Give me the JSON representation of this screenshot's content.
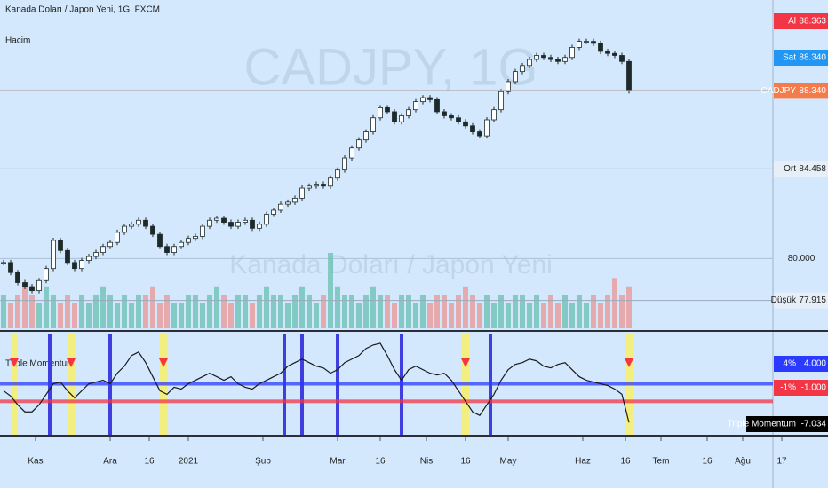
{
  "header": {
    "symbol_title": "Kanada Doları / Japon Yeni, 1G, FXCM",
    "volume_label": "Hacim",
    "watermark": "CADJPY, 1G",
    "watermark_sub": "Kanada Doları / Japon Yeni"
  },
  "chart_data": [
    {
      "type": "candlestick",
      "up_color": "#ffffff",
      "down_color": "#1e2a2a",
      "x": [
        1,
        3,
        5,
        7,
        9,
        11,
        13,
        15,
        17,
        19,
        21,
        23,
        25,
        27,
        29,
        31,
        33,
        35,
        37,
        39,
        41,
        43,
        45,
        47,
        49,
        51,
        53,
        55,
        57,
        59,
        61,
        63,
        65,
        67,
        69,
        71,
        73,
        75,
        77,
        79,
        81,
        83,
        85,
        87,
        89,
        91,
        93,
        95,
        97,
        99,
        101,
        103,
        105,
        107,
        109,
        111,
        113,
        115,
        117,
        119,
        121,
        123,
        125,
        127,
        129,
        131,
        133,
        135,
        137,
        139,
        141,
        143,
        145,
        147,
        149,
        151,
        153,
        155,
        157,
        159,
        161,
        163,
        165,
        167,
        169,
        171,
        173,
        175,
        177
      ],
      "close": [
        79.8,
        79.3,
        78.8,
        78.6,
        78.4,
        78.9,
        79.5,
        80.9,
        80.4,
        79.8,
        79.5,
        79.9,
        80.1,
        80.3,
        80.6,
        80.8,
        81.3,
        81.6,
        81.7,
        81.9,
        81.6,
        81.2,
        80.6,
        80.3,
        80.6,
        80.8,
        81.0,
        81.1,
        81.6,
        81.9,
        82.0,
        81.8,
        81.6,
        81.8,
        81.9,
        81.5,
        81.7,
        82.2,
        82.4,
        82.7,
        82.8,
        83.0,
        83.5,
        83.6,
        83.7,
        83.6,
        84.0,
        84.4,
        85.0,
        85.5,
        85.9,
        86.3,
        87.0,
        87.5,
        87.3,
        86.8,
        87.1,
        87.4,
        87.8,
        88.0,
        87.9,
        87.3,
        87.1,
        87.0,
        86.8,
        86.6,
        86.3,
        86.1,
        86.9,
        87.4,
        88.3,
        88.8,
        89.3,
        89.6,
        89.9,
        90.1,
        90.0,
        89.9,
        89.8,
        90.0,
        90.5,
        90.8,
        90.8,
        90.7,
        90.3,
        90.2,
        90.1,
        89.8,
        88.34
      ],
      "volume": [
        4,
        3,
        4,
        5,
        4,
        3,
        5,
        4,
        3,
        4,
        3,
        4,
        3,
        4,
        5,
        4,
        3,
        4,
        3,
        4,
        4,
        5,
        3,
        4,
        3,
        3,
        4,
        4,
        3,
        4,
        5,
        4,
        3,
        4,
        4,
        3,
        4,
        5,
        4,
        4,
        3,
        4,
        5,
        4,
        3,
        4,
        9,
        5,
        4,
        4,
        3,
        4,
        5,
        4,
        4,
        3,
        4,
        4,
        3,
        4,
        3,
        4,
        4,
        3,
        4,
        5,
        4,
        3,
        4,
        3,
        4,
        3,
        4,
        4,
        3,
        4,
        3,
        4,
        3,
        4,
        3,
        4,
        3,
        4,
        3,
        4,
        6,
        4,
        5
      ],
      "xlim": [
        0,
        218
      ],
      "ylim": [
        76.44,
        92.77
      ],
      "yticks": [
        {
          "value": 80,
          "label": "80.000"
        }
      ],
      "price_labels": [
        {
          "name": "Al",
          "value": 88.363,
          "label": "88.363",
          "color": "#f23645"
        },
        {
          "name": "Sat",
          "value": 88.34,
          "label": "88.340",
          "color": "#2196f3"
        },
        {
          "name": "CADJPY",
          "value": 88.34,
          "label": "88.340",
          "color": "#f57c4a"
        },
        {
          "name": "Ort",
          "value": 84.458,
          "label": "84.458",
          "color": "#e6eef7"
        },
        {
          "name": "Düşük",
          "value": 77.915,
          "label": "77.915",
          "color": "#e6eef7"
        }
      ]
    },
    {
      "type": "line",
      "title": "Triple Momentum",
      "color": "#1a1a1a",
      "x": [
        1,
        3,
        5,
        7,
        9,
        11,
        13,
        15,
        17,
        19,
        21,
        23,
        25,
        27,
        29,
        31,
        33,
        35,
        37,
        39,
        41,
        43,
        45,
        47,
        49,
        51,
        53,
        55,
        57,
        59,
        61,
        63,
        65,
        67,
        69,
        71,
        73,
        75,
        77,
        79,
        81,
        83,
        85,
        87,
        89,
        91,
        93,
        95,
        97,
        99,
        101,
        103,
        105,
        107,
        109,
        111,
        113,
        115,
        117,
        119,
        121,
        123,
        125,
        127,
        129,
        131,
        133,
        135,
        137,
        139,
        141,
        143,
        145,
        147,
        149,
        151,
        153,
        155,
        157,
        159,
        161,
        163,
        165,
        167,
        169,
        171,
        173,
        175,
        177
      ],
      "values": [
        2,
        0.5,
        -2,
        -4,
        -4,
        -2,
        1,
        4,
        4.5,
        2,
        0,
        2,
        4,
        4.5,
        5,
        4,
        7,
        9,
        12,
        13,
        10,
        6,
        2,
        1,
        3,
        2.5,
        4,
        5,
        6,
        7,
        6,
        5,
        6,
        4,
        3,
        2.5,
        4,
        5,
        6,
        7,
        9,
        10,
        11,
        10,
        9,
        8.5,
        7,
        8,
        10,
        11,
        12,
        14,
        15,
        15.5,
        12,
        8,
        5,
        8,
        9,
        8,
        7,
        6.5,
        7,
        5,
        2,
        -1,
        -4,
        -5,
        -2,
        1,
        5,
        8,
        9.5,
        10,
        11,
        10.5,
        9,
        8.5,
        9.5,
        10,
        8,
        6,
        5,
        4.5,
        4,
        3.5,
        2.5,
        1,
        -7.034
      ],
      "value_label": "-7.034",
      "xlim": [
        0,
        218
      ],
      "ylim": [
        -10.5,
        18.25
      ],
      "levels": [
        {
          "name": "4%",
          "value": 4,
          "label": "4.000",
          "color": "#2a3bff"
        },
        {
          "name": "-1%",
          "value": -1,
          "label": "-1.000",
          "color": "#f23645"
        }
      ],
      "signals_blue": [
        14,
        31,
        80,
        85,
        95,
        113,
        138
      ],
      "signals_yellow": [
        4,
        20,
        46,
        131,
        177
      ],
      "xticks": [
        {
          "value": 10,
          "label": "Kas"
        },
        {
          "value": 31,
          "label": "Ara"
        },
        {
          "value": 42,
          "label": "16"
        },
        {
          "value": 53,
          "label": "2021"
        },
        {
          "value": 74,
          "label": "Şub"
        },
        {
          "value": 95,
          "label": "Mar"
        },
        {
          "value": 107,
          "label": "16"
        },
        {
          "value": 120,
          "label": "Nis"
        },
        {
          "value": 131,
          "label": "16"
        },
        {
          "value": 143,
          "label": "May"
        },
        {
          "value": 164,
          "label": "Haz"
        },
        {
          "value": 176,
          "label": "16"
        },
        {
          "value": 186,
          "label": "Tem"
        },
        {
          "value": 199,
          "label": "16"
        },
        {
          "value": 209,
          "label": "Ağu"
        },
        {
          "value": 220,
          "label": "17"
        }
      ]
    }
  ]
}
